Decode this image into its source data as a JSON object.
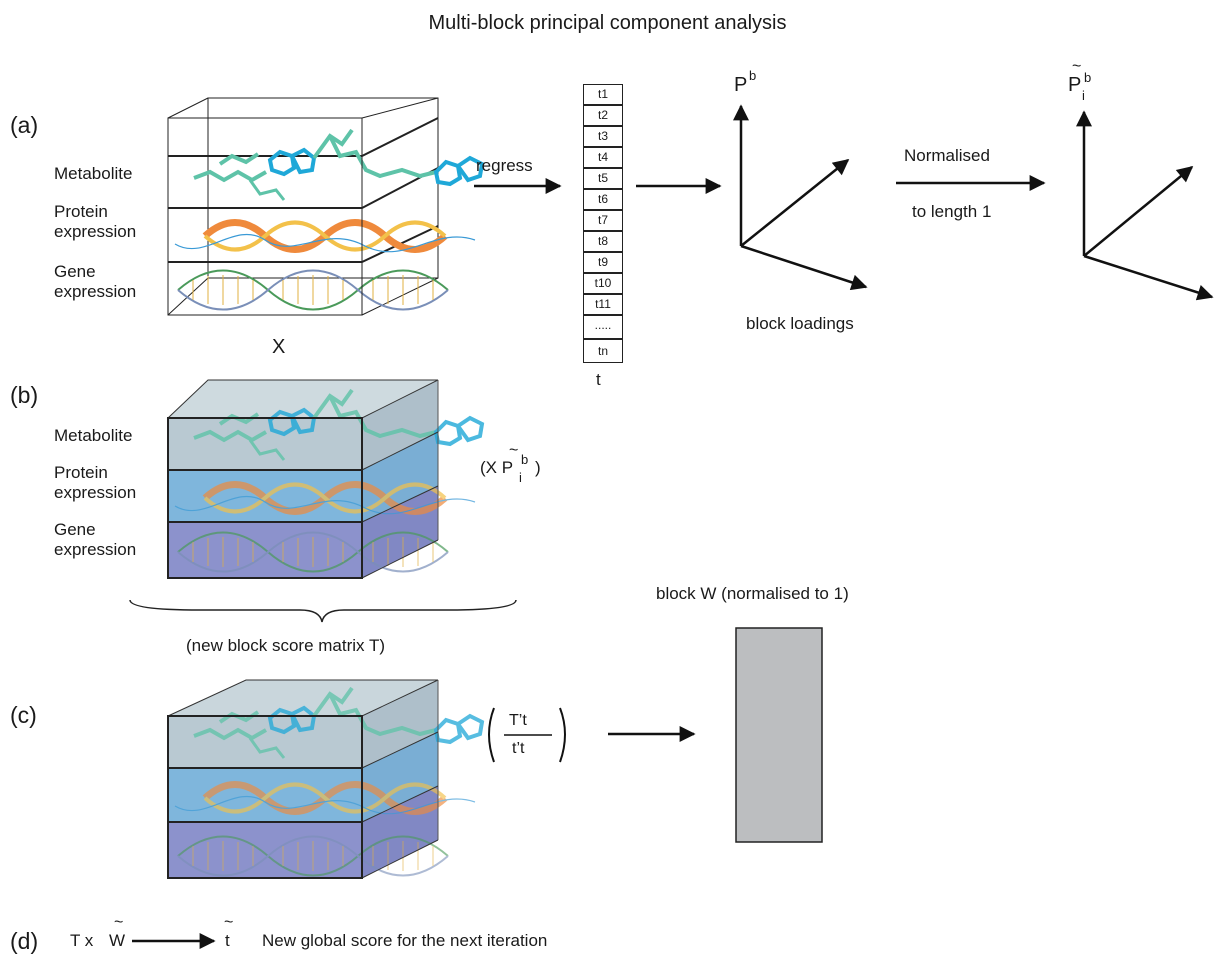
{
  "title": "Multi-block principal component analysis",
  "panels": {
    "a": {
      "label": "(a)",
      "layers": [
        "Metabolite",
        "Protein expression",
        "Gene expression"
      ],
      "layer_lines": [
        [
          "Metabolite"
        ],
        [
          "Protein",
          "expression"
        ],
        [
          "Gene",
          "expression"
        ]
      ],
      "matrix_label": "X",
      "arrow_label": "regress",
      "score_vector": [
        "t1",
        "t2",
        "t3",
        "t4",
        "t5",
        "t6",
        "t7",
        "t8",
        "t9",
        "t10",
        "t11",
        ".....",
        "tn"
      ],
      "score_label": "t",
      "loadings_axis": "P",
      "loadings_sup": "b",
      "loadings_caption": "block loadings",
      "normalise_label_1": "Normalised",
      "normalise_label_2": "to length 1",
      "norm_axis": "P",
      "norm_sub": "i",
      "norm_sup": "b",
      "tilde": "~"
    },
    "b": {
      "label": "(b)",
      "layer_lines": [
        [
          "Metabolite"
        ],
        [
          "Protein",
          "expression"
        ],
        [
          "Gene",
          "expression"
        ]
      ],
      "product_open": "(X P",
      "product_sub": "i",
      "product_sup": "b",
      "product_close": ")",
      "brace_caption": "(new block score matrix T)"
    },
    "c": {
      "label": "(c)",
      "numerator": "T’t",
      "denominator": "t’t",
      "block_caption": "block W (normalised to 1)"
    },
    "d": {
      "label": "(d)",
      "lhs": "T x",
      "w": "W",
      "t": "t",
      "tilde": "~",
      "text": "New global score for the next iteration"
    }
  },
  "colors": {
    "teal": "#5ec3a8",
    "cyan": "#1fa8d8",
    "helix_orange": "#ef8a3c",
    "helix_yellow": "#f3c14a",
    "dna_green": "#4a9a5a",
    "layer_top": "#b9c9d2",
    "layer_mid": "#7fb6dc",
    "layer_bottom": "#8c92cc",
    "block_w": "#bcbec0"
  }
}
